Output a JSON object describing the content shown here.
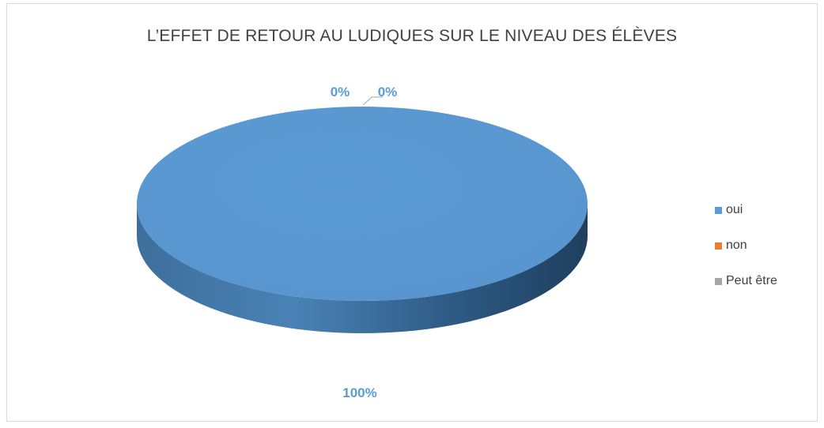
{
  "chart_data": {
    "type": "pie",
    "title": "L’EFFET DE RETOUR AU LUDIQUES SUR LE NIVEAU DES ÉLÈVES",
    "categories": [
      "oui",
      "non",
      "Peut être"
    ],
    "values": [
      100,
      0,
      0
    ],
    "data_labels": [
      "100%",
      "0%",
      "0%"
    ],
    "colors": [
      "#5b9bd5",
      "#ed7d31",
      "#a5a5a5"
    ],
    "style": "3d",
    "legend_position": "right"
  }
}
